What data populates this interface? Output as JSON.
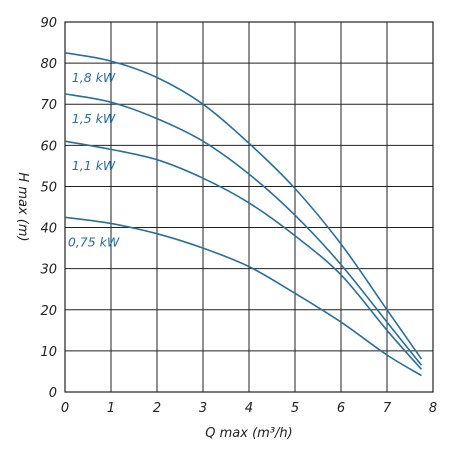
{
  "chart_data": {
    "type": "line",
    "xlabel": "Q max (m³/h)",
    "ylabel": "H max (m)",
    "xlim": [
      0,
      8
    ],
    "ylim": [
      0,
      90
    ],
    "xticks": [
      "0",
      "1",
      "2",
      "3",
      "4",
      "5",
      "6",
      "7",
      "8"
    ],
    "yticks": [
      "0",
      "10",
      "20",
      "30",
      "40",
      "50",
      "60",
      "70",
      "80",
      "90"
    ],
    "grid": true,
    "line_color": "#2a6f9c",
    "series": [
      {
        "name": "1,8 kW",
        "x": [
          0,
          1,
          2,
          3,
          4,
          5,
          6,
          7,
          7.75
        ],
        "y": [
          82.5,
          80.5,
          76.5,
          70,
          60.5,
          49.5,
          36,
          20,
          8
        ]
      },
      {
        "name": "1,5 kW",
        "x": [
          0,
          1,
          2,
          3,
          4,
          5,
          6,
          7,
          7.75
        ],
        "y": [
          72.5,
          70.5,
          66.5,
          61,
          53,
          43,
          31,
          17,
          6.5
        ]
      },
      {
        "name": "1,1 kW",
        "x": [
          0,
          1,
          2,
          3,
          4,
          5,
          6,
          7,
          7.75
        ],
        "y": [
          61,
          59,
          56.5,
          52,
          46,
          38,
          28.5,
          15,
          5.5
        ]
      },
      {
        "name": "0,75 kW",
        "x": [
          0,
          1,
          2,
          3,
          4,
          5,
          6,
          7,
          7.75
        ],
        "y": [
          42.5,
          41,
          38.5,
          35,
          30.5,
          24,
          17,
          9,
          4
        ]
      }
    ]
  }
}
